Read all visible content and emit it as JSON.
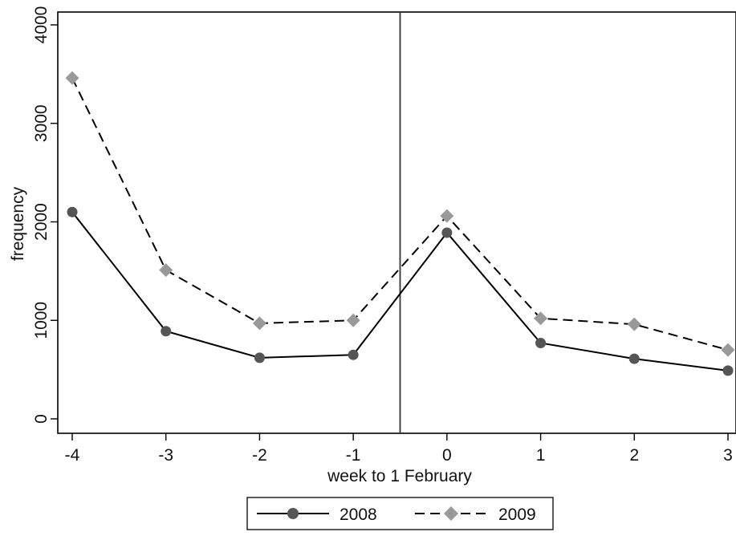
{
  "chart_data": {
    "type": "line",
    "xlabel": "week to 1 February",
    "ylabel": "frequency",
    "x": [
      -4,
      -3,
      -2,
      -1,
      0,
      1,
      2,
      3
    ],
    "x_ticks": [
      "-4",
      "-3",
      "-2",
      "-1",
      "0",
      "1",
      "2",
      "3"
    ],
    "xlim": [
      -4,
      3
    ],
    "y_ticks": [
      "0",
      "1000",
      "2000",
      "3000",
      "4000"
    ],
    "ylim": [
      0,
      4000
    ],
    "reference_line_x": -0.5,
    "grid": false,
    "legend_position": "bottom",
    "series": [
      {
        "name": "2008",
        "values": [
          2100,
          890,
          620,
          650,
          1890,
          770,
          610,
          490
        ],
        "color": "#555555",
        "line_style": "solid",
        "marker": "circle"
      },
      {
        "name": "2009",
        "values": [
          3460,
          1510,
          970,
          1000,
          2060,
          1020,
          960,
          700
        ],
        "color": "#999999",
        "line_style": "dashed",
        "marker": "diamond"
      }
    ]
  }
}
